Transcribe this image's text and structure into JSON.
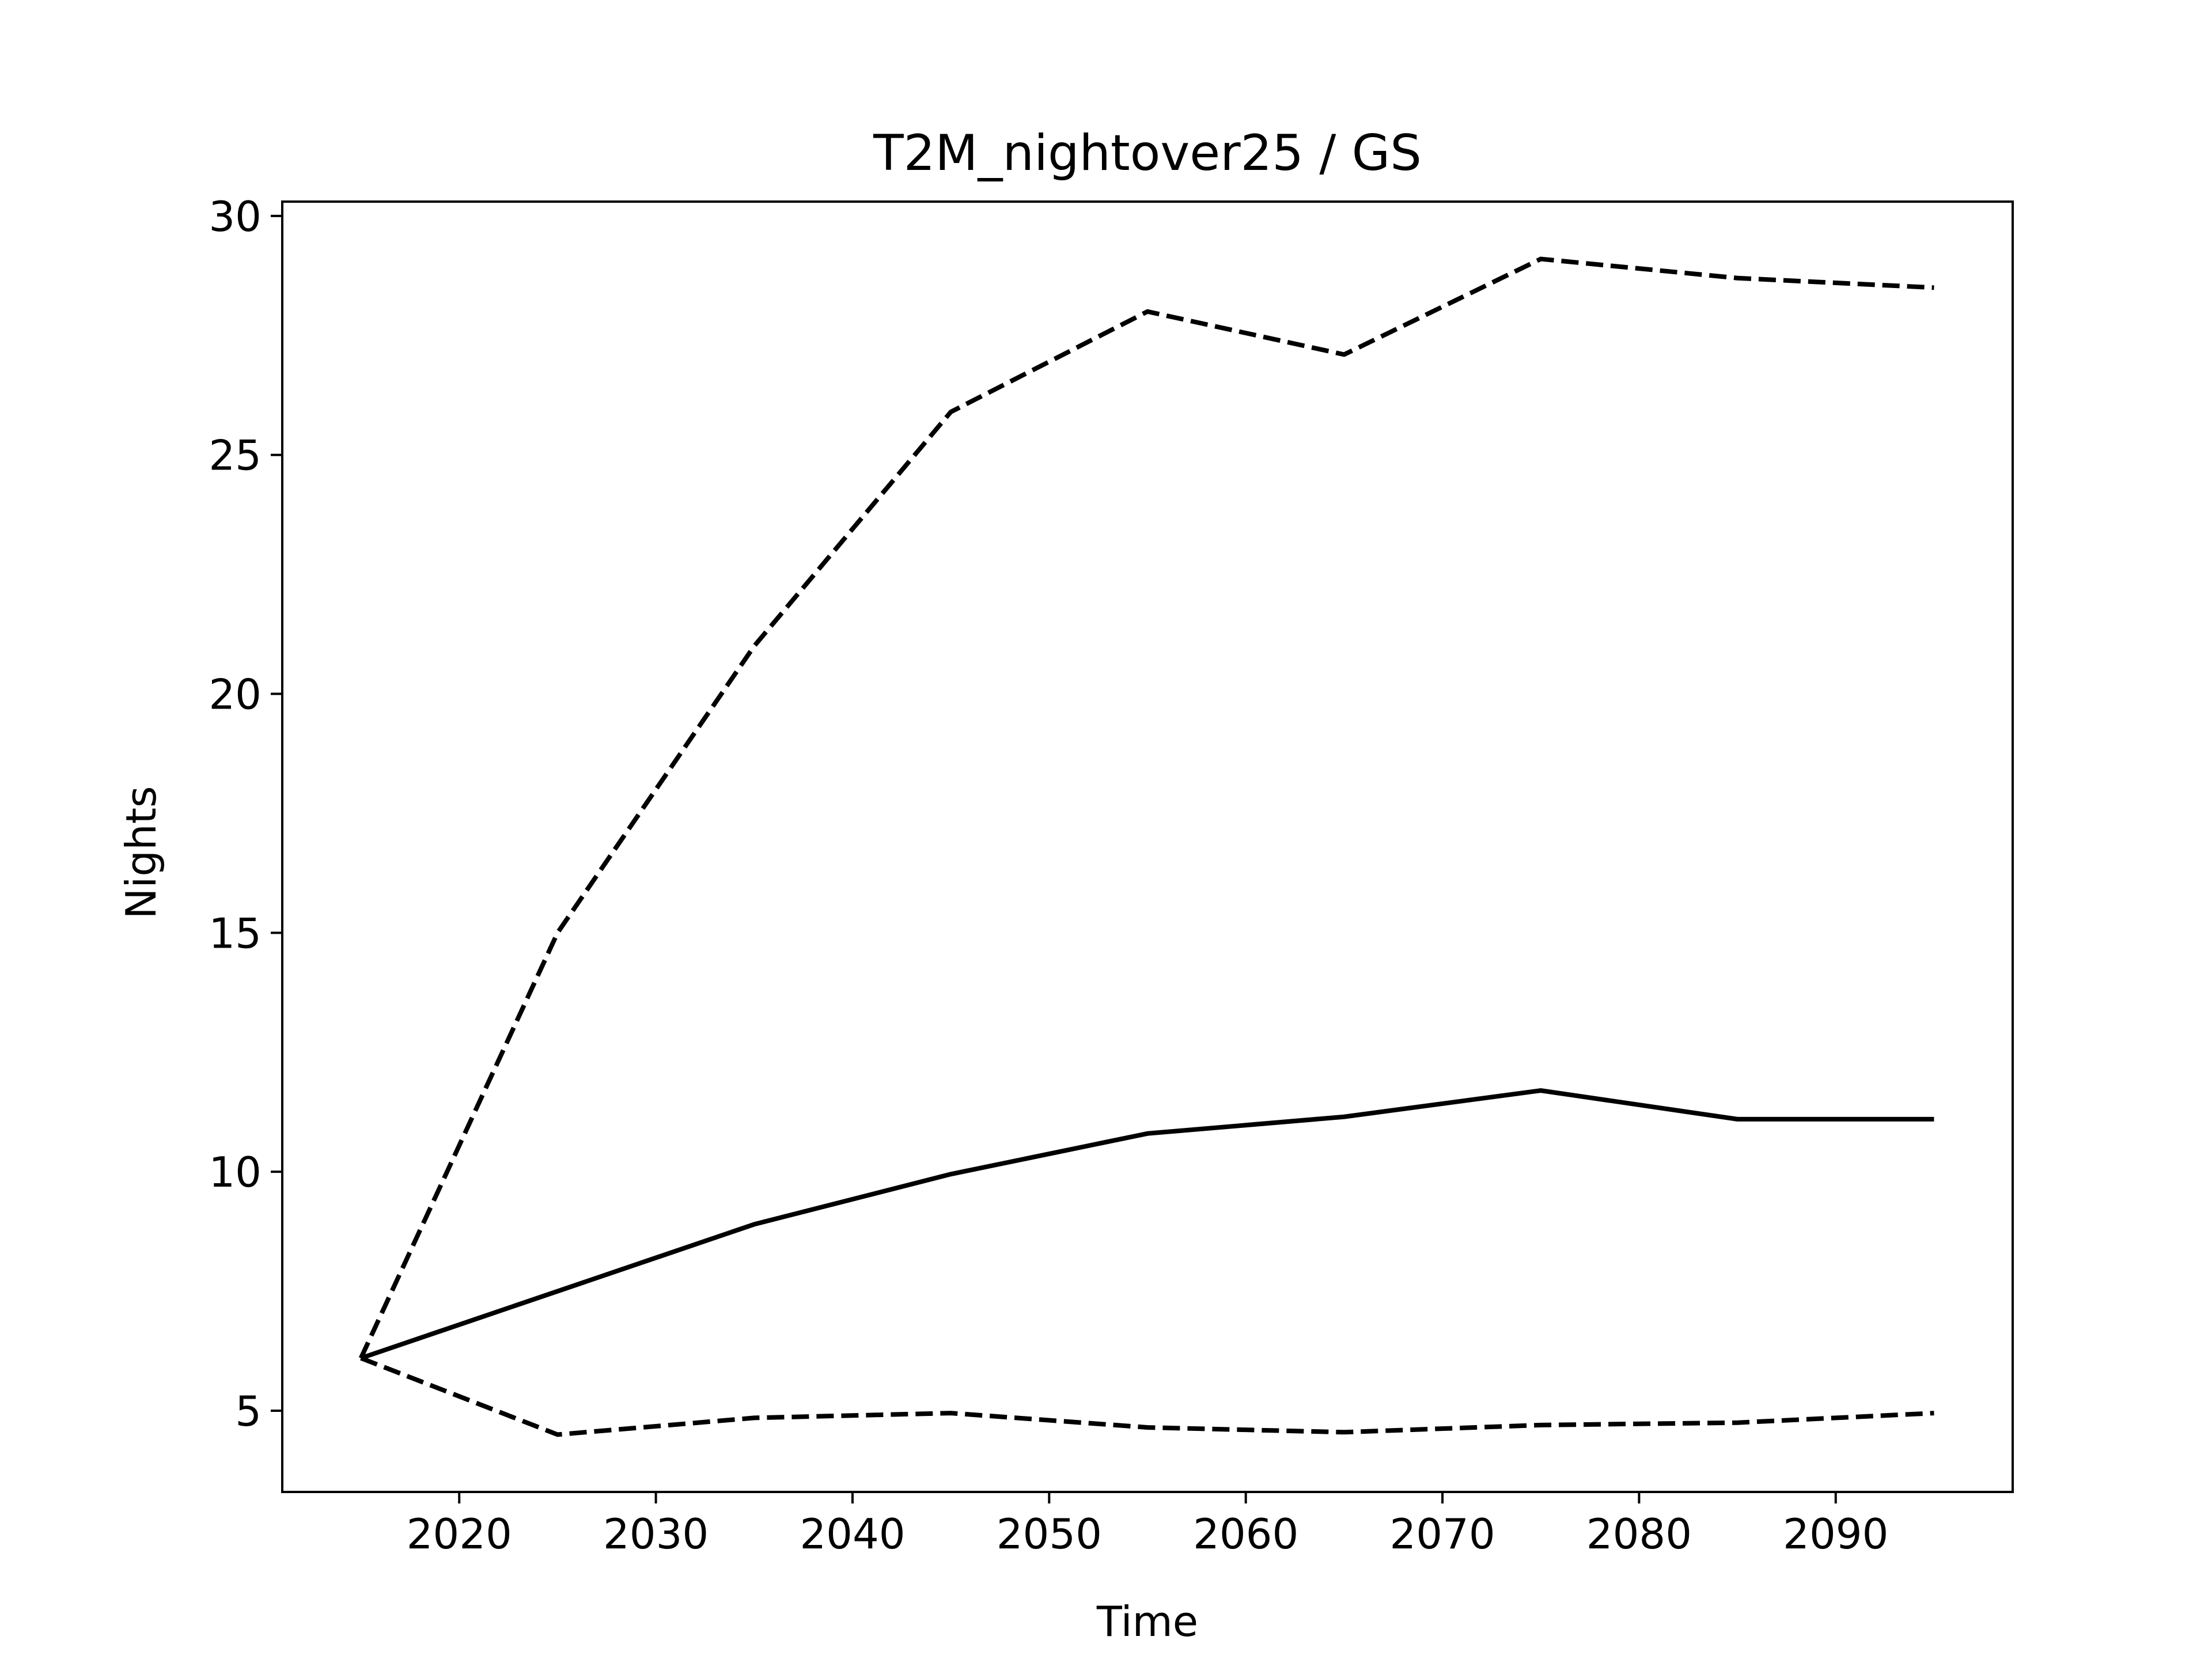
{
  "chart_data": {
    "type": "line",
    "title": "T2M_nightover25 / GS",
    "xlabel": "Time",
    "ylabel": "Nights",
    "x": [
      2015,
      2025,
      2035,
      2045,
      2055,
      2065,
      2075,
      2085,
      2095
    ],
    "xlim": [
      2011,
      2099
    ],
    "ylim": [
      3.3,
      30.3
    ],
    "xticks": [
      2020,
      2030,
      2040,
      2050,
      2060,
      2070,
      2080,
      2090
    ],
    "yticks": [
      5,
      10,
      15,
      20,
      25,
      30
    ],
    "grid": false,
    "legend": "none",
    "series": [
      {
        "style": "dashed",
        "color": "#000000",
        "values": [
          6.1,
          15.0,
          21.0,
          25.9,
          28.0,
          27.1,
          29.1,
          28.7,
          28.5
        ]
      },
      {
        "style": "solid",
        "color": "#000000",
        "values": [
          6.1,
          7.5,
          8.9,
          9.95,
          10.8,
          11.15,
          11.7,
          11.1,
          11.1
        ]
      },
      {
        "style": "dashed",
        "color": "#000000",
        "values": [
          6.1,
          4.5,
          4.85,
          4.95,
          4.65,
          4.55,
          4.7,
          4.75,
          4.95
        ]
      }
    ]
  }
}
